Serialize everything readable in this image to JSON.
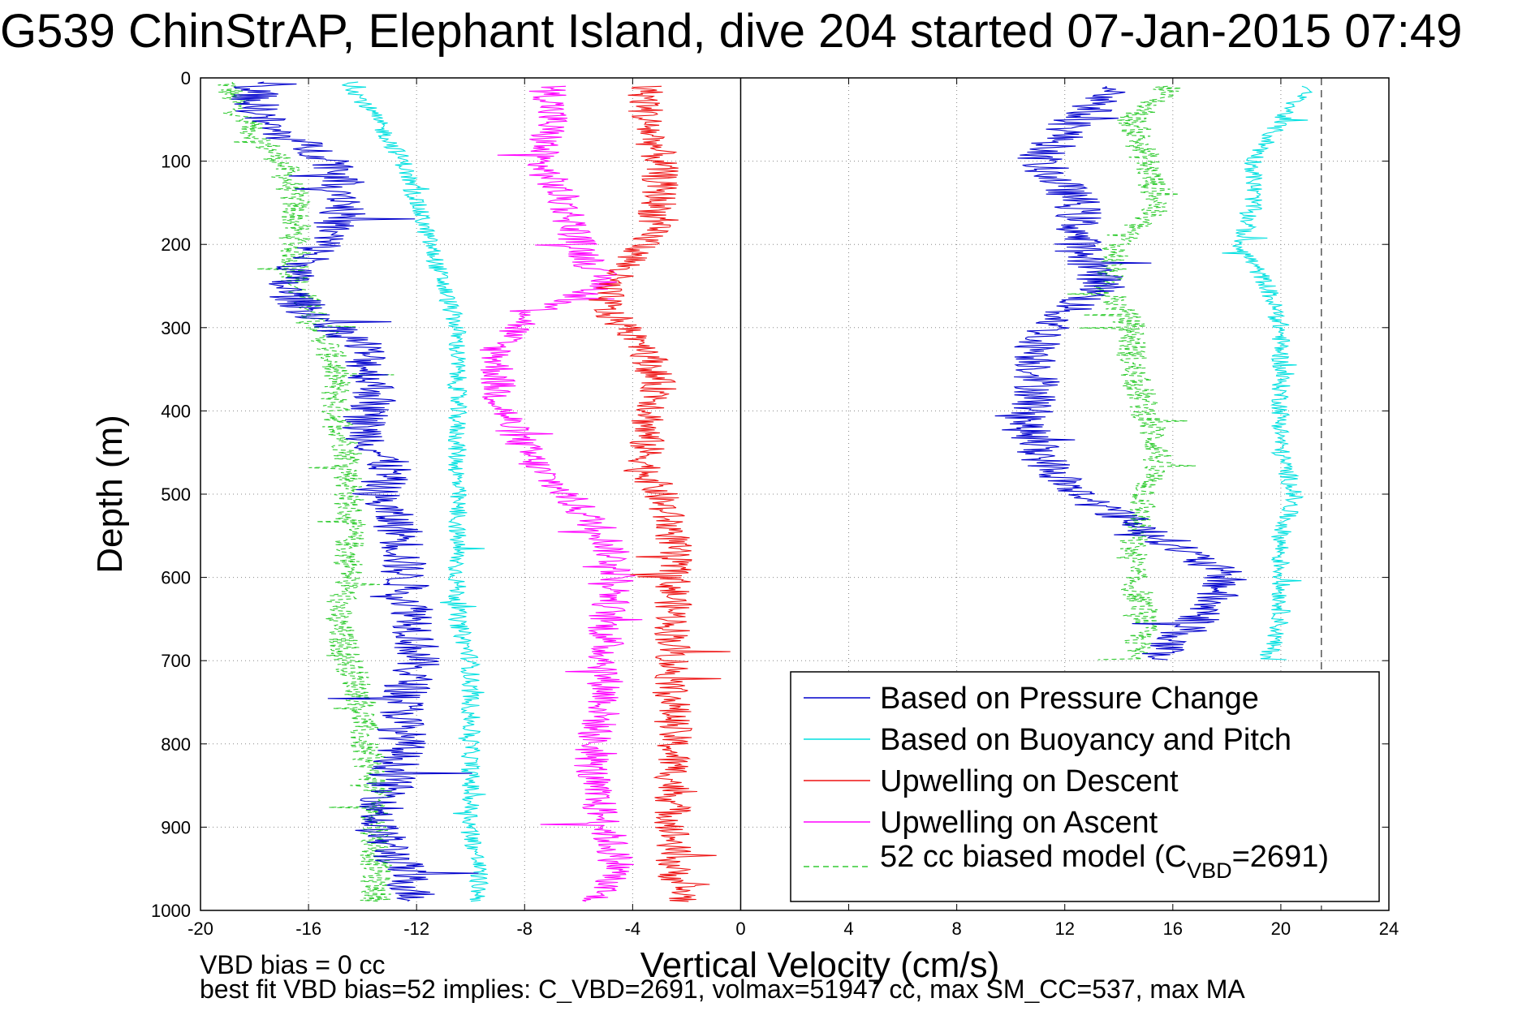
{
  "chart_data": {
    "type": "line",
    "title": "G539 ChinStrAP, Elephant Island, dive 204 started 07-Jan-2015 07:49",
    "xlabel": "Vertical Velocity (cm/s)",
    "ylabel": "Depth (m)",
    "xlim": [
      -20,
      24
    ],
    "ylim": [
      0,
      1000
    ],
    "y_reversed": true,
    "grid": true,
    "x_ticks": [
      -20,
      -16,
      -12,
      -8,
      -4,
      0,
      4,
      8,
      12,
      16,
      20,
      24
    ],
    "y_ticks": [
      0,
      100,
      200,
      300,
      400,
      500,
      600,
      700,
      800,
      900,
      1000
    ],
    "legend_position": "lower-right",
    "reference_lines": [
      {
        "axis": "x",
        "value": 0,
        "style": "solid",
        "color": "#000000"
      },
      {
        "axis": "x",
        "value": 21.5,
        "style": "dashed",
        "color": "#555555"
      }
    ],
    "series": [
      {
        "name": "Based on Pressure Change",
        "color": "#0000cc",
        "style": "solid",
        "noise": 0.9,
        "profiles": [
          {
            "depth": [
              5,
              30,
              60,
              100,
              150,
              200,
              250,
              280,
              320,
              380,
              420,
              470,
              500,
              550,
              600,
              650,
              700,
              750,
              800,
              850,
              900,
              950,
              990
            ],
            "value": [
              -18,
              -18,
              -17.5,
              -15,
              -14.5,
              -15.5,
              -17,
              -16,
              -14,
              -13.5,
              -14,
              -13,
              -13.5,
              -12.5,
              -12.5,
              -12,
              -12,
              -12.5,
              -12.5,
              -13,
              -13.5,
              -12.5,
              -12
            ]
          },
          {
            "depth": [
              10,
              50,
              100,
              150,
              200,
              250,
              280,
              320,
              380,
              420,
              470,
              500,
              550,
              600,
              650,
              700
            ],
            "value": [
              14,
              12.5,
              11,
              12.5,
              12.5,
              13.5,
              12,
              11,
              11,
              10.5,
              11.5,
              12.5,
              15.5,
              18,
              17,
              15
            ]
          }
        ]
      },
      {
        "name": "Based on Buoyancy and Pitch",
        "color": "#00e0e0",
        "style": "solid",
        "noise": 0.35,
        "profiles": [
          {
            "depth": [
              5,
              50,
              100,
              150,
              200,
              250,
              300,
              350,
              400,
              450,
              500,
              550,
              600,
              650,
              700,
              750,
              800,
              850,
              900,
              950,
              990
            ],
            "value": [
              -14.5,
              -13.5,
              -12.5,
              -12,
              -11.5,
              -11,
              -10.5,
              -10.5,
              -10.5,
              -10.5,
              -10.5,
              -10.5,
              -10.5,
              -10.5,
              -10,
              -10,
              -10,
              -10,
              -10,
              -9.7,
              -9.7
            ]
          },
          {
            "depth": [
              10,
              50,
              100,
              150,
              200,
              250,
              300,
              350,
              400,
              450,
              500,
              550,
              600,
              650,
              700
            ],
            "value": [
              21,
              20,
              19,
              19,
              18.5,
              19.5,
              20,
              20,
              20,
              20,
              20.5,
              20,
              20,
              20,
              19.5
            ]
          }
        ]
      },
      {
        "name": "Upwelling on Descent",
        "color": "#ee1111",
        "style": "solid",
        "noise": 0.7,
        "profiles": [
          {
            "depth": [
              10,
              50,
              100,
              150,
              200,
              250,
              280,
              320,
              380,
              420,
              470,
              500,
              550,
              600,
              650,
              700,
              750,
              800,
              850,
              900,
              950,
              990
            ],
            "value": [
              -3.5,
              -3.5,
              -3,
              -3,
              -3.5,
              -5,
              -5,
              -3.5,
              -3,
              -3.5,
              -3.5,
              -3,
              -2.5,
              -2.5,
              -2.5,
              -2.5,
              -2.5,
              -2.5,
              -2.5,
              -2.5,
              -2.5,
              -2
            ]
          }
        ]
      },
      {
        "name": "Upwelling on Ascent",
        "color": "#ff00ff",
        "style": "solid",
        "noise": 0.7,
        "profiles": [
          {
            "depth": [
              10,
              50,
              100,
              150,
              200,
              250,
              280,
              320,
              380,
              420,
              470,
              500,
              550,
              600,
              650,
              700,
              750,
              800,
              850,
              900,
              950,
              990
            ],
            "value": [
              -7,
              -7,
              -7.5,
              -6.5,
              -6,
              -5,
              -7.5,
              -9,
              -9,
              -8.5,
              -7.5,
              -6.5,
              -5,
              -4.5,
              -5,
              -5,
              -5,
              -5.5,
              -5.5,
              -5,
              -4.5,
              -5.5
            ]
          }
        ]
      },
      {
        "name": "52 cc biased model (C_VBD=2691)",
        "color": "#33cc33",
        "style": "dashed",
        "noise": 0.6,
        "profiles": [
          {
            "depth": [
              5,
              50,
              100,
              150,
              200,
              250,
              300,
              350,
              400,
              450,
              500,
              550,
              600,
              650,
              700,
              750,
              800,
              850,
              900,
              950,
              990
            ],
            "value": [
              -19,
              -18.5,
              -17,
              -16.5,
              -16.5,
              -16.5,
              -15.5,
              -15,
              -15,
              -14.5,
              -14.5,
              -14.5,
              -14.5,
              -15,
              -14.5,
              -14,
              -14,
              -13.5,
              -13.5,
              -13.5,
              -13.5
            ]
          },
          {
            "depth": [
              10,
              50,
              100,
              150,
              200,
              250,
              300,
              350,
              400,
              450,
              500,
              550,
              600,
              650,
              700
            ],
            "value": [
              16,
              14.5,
              15,
              15.5,
              14,
              13.5,
              14.5,
              14.5,
              15,
              15.5,
              15,
              14.5,
              14.5,
              15,
              14.5
            ]
          }
        ]
      }
    ]
  },
  "legend": {
    "items": [
      {
        "label": "Based on Pressure Change"
      },
      {
        "label": "Based on Buoyancy and Pitch"
      },
      {
        "label": "Upwelling on Descent"
      },
      {
        "label": "Upwelling on Ascent"
      }
    ],
    "model_label": {
      "prefix": "52 cc biased model (C",
      "subscript": "VBD",
      "suffix": "=2691)"
    }
  },
  "footer": {
    "line1": "VBD bias = 0 cc",
    "line2": "best fit VBD bias=52 implies: C_VBD=2691, volmax=51947 cc, max SM_CC=537, max MA"
  }
}
